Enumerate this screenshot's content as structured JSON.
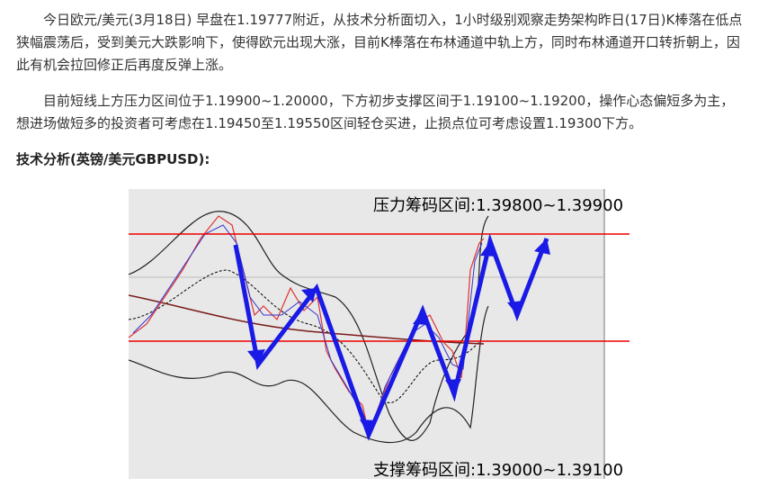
{
  "paragraphs": [
    "今日欧元/美元(3月18日) 早盘在1.19777附近，从技术分析面切入，1小时级别观察走势架构昨日(17日)K棒落在低点狭幅震荡后，受到美元大跌影响下，使得欧元出现大涨，目前K棒落在布林通道中轨上方，同时布林通道开口转折朝上，因此有机会拉回修正后再度反弹上涨。",
    "目前短线上方压力区间位于1.19900~1.20000，下方初步支撑区间于1.19100~1.19200，操作心态偏短多为主，想进场做短多的投资者可考虑在1.19450至1.19550区间轻仓买进，止损点位可考虑设置1.19300下方。"
  ],
  "heading": "技术分析(英镑/美元GBPUSD):",
  "chart_image": {
    "resistance_label": "压力筹码区间:1.39800~1.39900",
    "support_label": "支撑筹码区间:1.39000~1.39100"
  }
}
